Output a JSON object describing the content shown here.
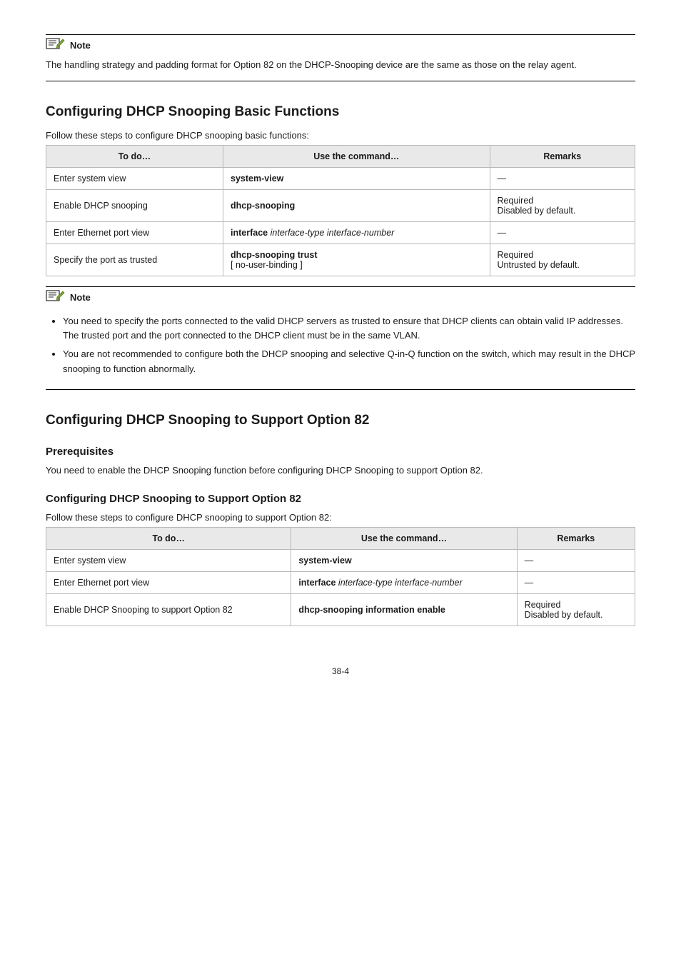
{
  "note1": {
    "label": "Note",
    "body": "The handling strategy and padding format for Option 82 on the DHCP-Snooping device are the same as those on the relay agent."
  },
  "section1": {
    "heading": "Configuring DHCP Snooping Basic Functions",
    "lead": "Follow these steps to configure DHCP snooping basic functions:",
    "table": {
      "head": [
        "To do…",
        "Use the command…",
        "Remarks"
      ],
      "rows": [
        {
          "todo": "Enter system view",
          "cmd": "system-view",
          "remarks": "—"
        },
        {
          "todo": "Enable DHCP snooping",
          "cmd": "dhcp-snooping",
          "remarks": "Required\nDisabled by default."
        },
        {
          "todo": "Enter Ethernet port view",
          "cmd_prefix": "interface",
          "cmd_args": "interface-type interface-number",
          "remarks": "—"
        },
        {
          "todo": "Specify the port as trusted",
          "cmd": "dhcp-snooping trust",
          "cmd_suffix_literal": "[ no-user-binding ]",
          "remarks": "Required\nUntrusted by default."
        }
      ]
    }
  },
  "note2": {
    "label": "Note",
    "bullets": [
      "You need to specify the ports connected to the valid DHCP servers as trusted to ensure that DHCP clients can obtain valid IP addresses. The trusted port and the port connected to the DHCP client must be in the same VLAN.",
      "You are not recommended to configure both the DHCP snooping and selective Q-in-Q function on the switch, which may result in the DHCP snooping to function abnormally."
    ]
  },
  "section2": {
    "heading": "Configuring DHCP Snooping to Support Option 82",
    "sub_pre": {
      "heading": "Prerequisites",
      "text": "You need to enable the DHCP Snooping function before configuring DHCP Snooping to support Option 82."
    },
    "sub_cfg": {
      "heading": "Configuring DHCP Snooping to Support Option 82",
      "lead": "Follow these steps to configure DHCP snooping to support Option 82:",
      "table": {
        "head": [
          "To do…",
          "Use the command…",
          "Remarks"
        ],
        "rows": [
          {
            "todo": "Enter system view",
            "cmd": "system-view",
            "remarks": "—"
          },
          {
            "todo": "Enter Ethernet port view",
            "cmd_prefix": "interface",
            "cmd_args": "interface-type interface-number",
            "remarks": "—"
          },
          {
            "todo": "Enable DHCP Snooping to support Option 82",
            "cmd": "dhcp-snooping information enable",
            "remarks": "Required\nDisabled by default."
          }
        ]
      }
    }
  },
  "pagenum": "38-4"
}
